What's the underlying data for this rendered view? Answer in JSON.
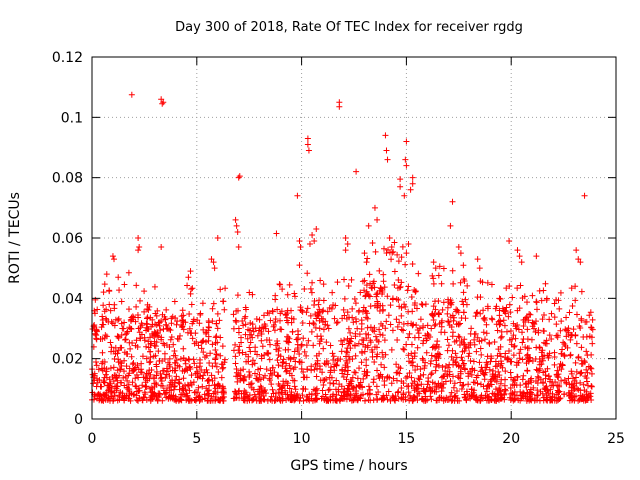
{
  "colors": {
    "series": "#ff0000",
    "axis": "#000000",
    "grid": "#a0a0a0",
    "background": "#ffffff"
  },
  "chart_data": {
    "type": "scatter",
    "title": "Day 300 of 2018, Rate Of TEC Index for receiver rgdg",
    "xlabel": "GPS time / hours",
    "ylabel": "ROTI / TECUs",
    "xlim": [
      0,
      24
    ],
    "ylim": [
      0,
      0.12
    ],
    "xticks": [
      0,
      5,
      10,
      15,
      20,
      25
    ],
    "xtick_labels": [
      "0",
      "5",
      "10",
      "15",
      "20",
      "25"
    ],
    "yticks": [
      0,
      0.02,
      0.04,
      0.06,
      0.08,
      0.1,
      0.12
    ],
    "ytick_labels": [
      "0",
      "0.02",
      "0.04",
      "0.06",
      "0.08",
      "0.1",
      "0.12"
    ],
    "grid": true,
    "marker": "+",
    "series": [
      {
        "name": "ROTI",
        "outliers": [
          [
            1.9,
            0.1075
          ],
          [
            3.3,
            0.106
          ],
          [
            3.4,
            0.105
          ],
          [
            3.35,
            0.1045
          ],
          [
            11.8,
            0.105
          ],
          [
            11.8,
            0.1035
          ],
          [
            10.3,
            0.093
          ],
          [
            10.3,
            0.091
          ],
          [
            10.35,
            0.089
          ],
          [
            14.0,
            0.094
          ],
          [
            14.05,
            0.089
          ],
          [
            14.1,
            0.086
          ],
          [
            15.0,
            0.092
          ],
          [
            14.95,
            0.086
          ],
          [
            15.0,
            0.084
          ],
          [
            12.6,
            0.082
          ],
          [
            7.0,
            0.08
          ],
          [
            7.05,
            0.0805
          ],
          [
            15.3,
            0.08
          ],
          [
            15.3,
            0.078
          ],
          [
            15.2,
            0.076
          ],
          [
            14.7,
            0.0795
          ],
          [
            14.7,
            0.077
          ],
          [
            14.9,
            0.074
          ],
          [
            23.5,
            0.074
          ],
          [
            9.8,
            0.074
          ],
          [
            17.2,
            0.072
          ],
          [
            6.85,
            0.066
          ],
          [
            6.9,
            0.064
          ],
          [
            6.95,
            0.062
          ],
          [
            7.0,
            0.057
          ],
          [
            13.5,
            0.07
          ],
          [
            13.6,
            0.066
          ],
          [
            13.2,
            0.064
          ],
          [
            8.8,
            0.0615
          ],
          [
            6.0,
            0.06
          ],
          [
            2.2,
            0.06
          ],
          [
            2.25,
            0.057
          ],
          [
            2.2,
            0.056
          ],
          [
            10.5,
            0.061
          ],
          [
            10.6,
            0.059
          ],
          [
            10.4,
            0.058
          ],
          [
            10.7,
            0.063
          ],
          [
            3.3,
            0.057
          ],
          [
            9.9,
            0.059
          ],
          [
            9.95,
            0.057
          ],
          [
            9.9,
            0.051
          ],
          [
            12.1,
            0.06
          ],
          [
            12.2,
            0.058
          ],
          [
            12.1,
            0.056
          ],
          [
            17.5,
            0.057
          ],
          [
            17.6,
            0.055
          ],
          [
            17.1,
            0.064
          ],
          [
            19.9,
            0.059
          ],
          [
            20.3,
            0.056
          ],
          [
            20.4,
            0.054
          ],
          [
            20.5,
            0.052
          ],
          [
            21.2,
            0.054
          ],
          [
            23.1,
            0.056
          ],
          [
            23.2,
            0.053
          ],
          [
            23.3,
            0.052
          ],
          [
            1.0,
            0.054
          ],
          [
            1.05,
            0.053
          ],
          [
            5.7,
            0.053
          ],
          [
            5.8,
            0.052
          ],
          [
            5.85,
            0.05
          ],
          [
            4.7,
            0.049
          ],
          [
            4.6,
            0.047
          ],
          [
            16.3,
            0.052
          ],
          [
            16.4,
            0.05
          ],
          [
            18.4,
            0.053
          ],
          [
            18.5,
            0.05
          ],
          [
            13.0,
            0.055
          ],
          [
            13.1,
            0.052
          ],
          [
            15.1,
            0.058
          ],
          [
            15.0,
            0.055
          ],
          [
            14.2,
            0.06
          ],
          [
            14.3,
            0.057
          ]
        ]
      }
    ]
  }
}
